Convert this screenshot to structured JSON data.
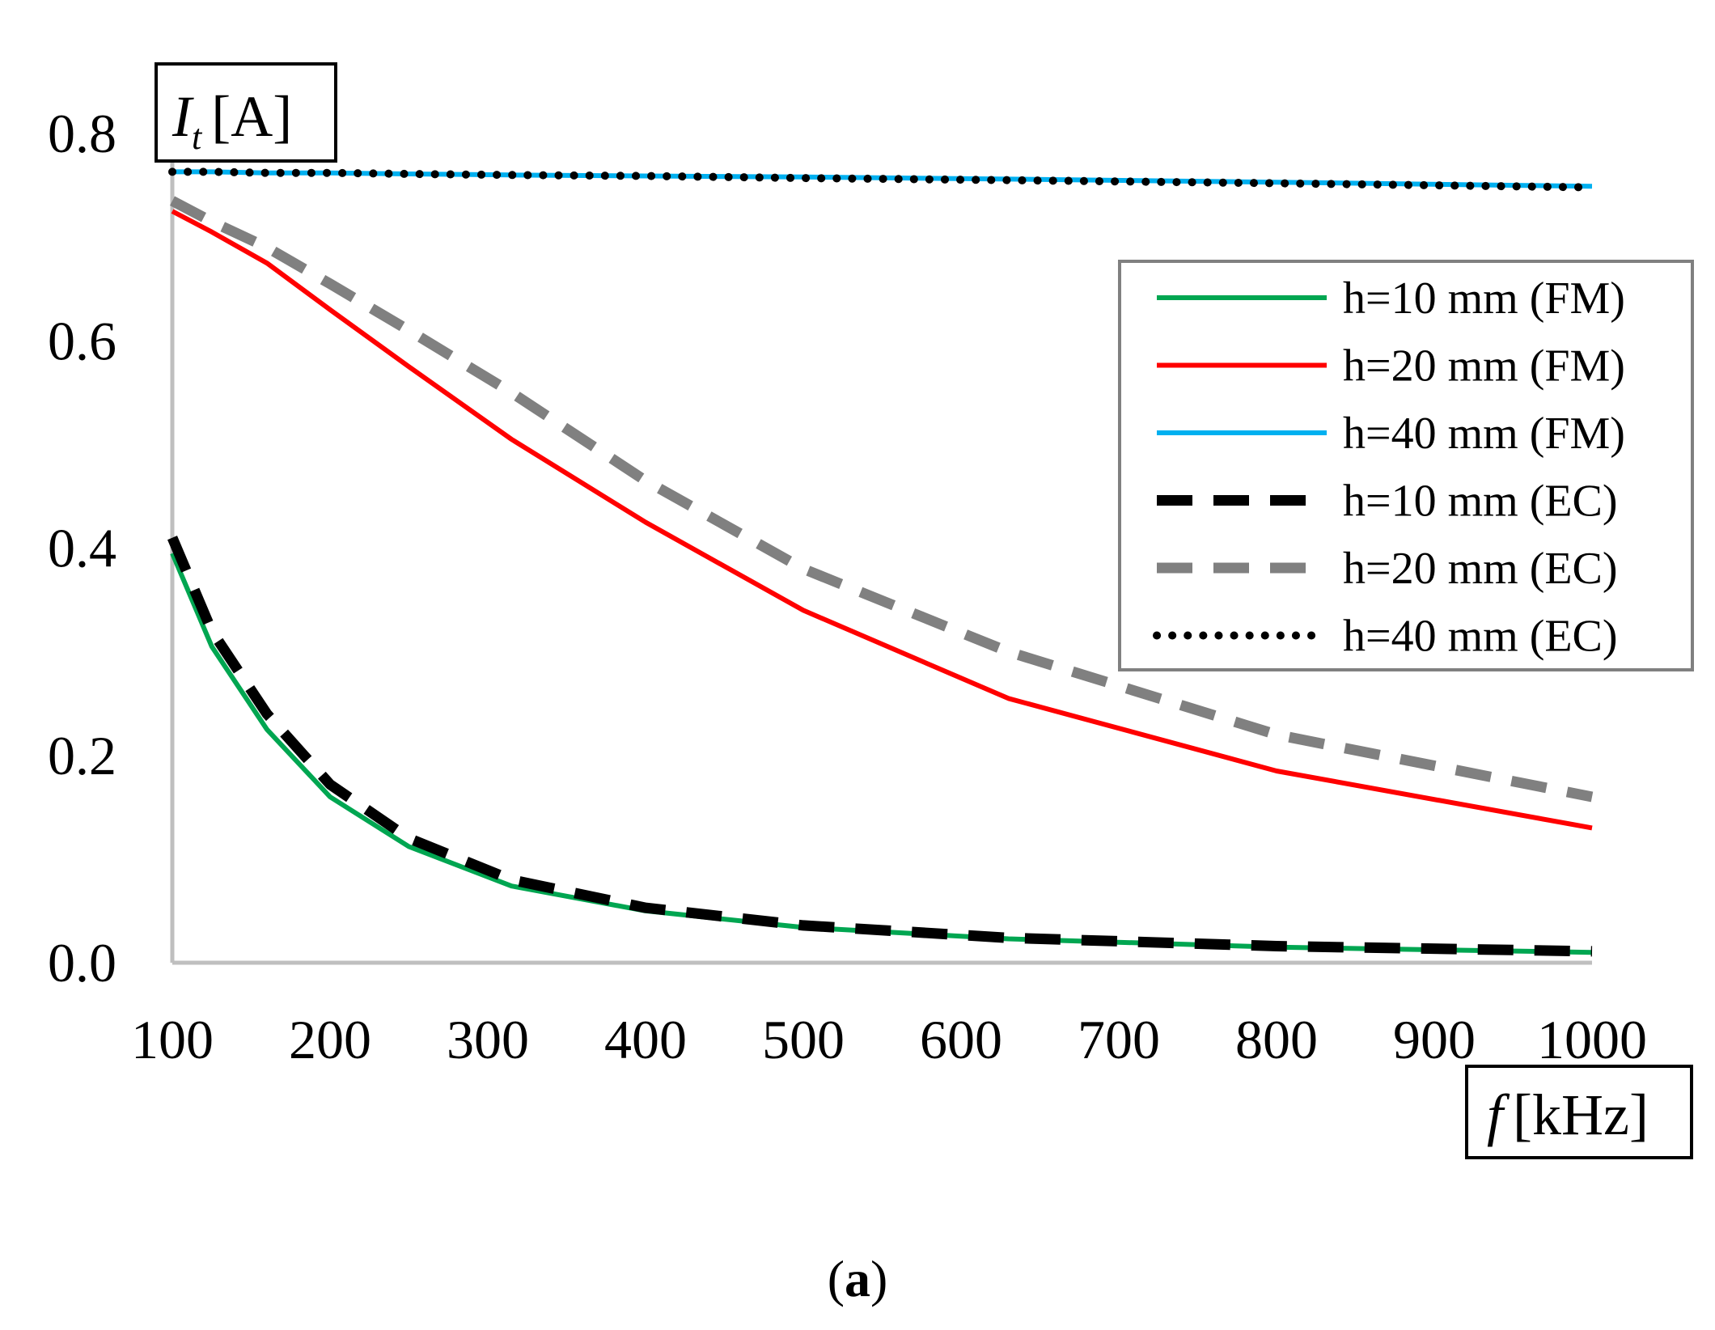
{
  "chart_data": {
    "type": "line",
    "title": "",
    "xlabel": {
      "symbol": "f",
      "unit": "[kHz]"
    },
    "ylabel": {
      "symbol": "I",
      "subscript": "t",
      "unit": "[A]"
    },
    "xlim": [
      100,
      1000
    ],
    "ylim": [
      0,
      0.8
    ],
    "xticks": [
      100,
      200,
      300,
      400,
      500,
      600,
      700,
      800,
      900,
      1000
    ],
    "xtick_labels": [
      "100",
      "200",
      "300",
      "400",
      "500",
      "600",
      "700",
      "800",
      "900",
      "1000"
    ],
    "yticks": [
      0,
      0.2,
      0.4,
      0.6,
      0.8
    ],
    "ytick_labels": [
      "0.0",
      "0.2",
      "0.4",
      "0.6",
      "0.8"
    ],
    "grid": false,
    "legend_position": "right",
    "caption": {
      "letter": "a"
    },
    "x": [
      100,
      125,
      160,
      200,
      250,
      315,
      400,
      500,
      630,
      800,
      1000
    ],
    "series": [
      {
        "name": "h=10 mm (FM)",
        "color": "#00a651",
        "style": "solid",
        "values": [
          0.395,
          0.305,
          0.225,
          0.16,
          0.112,
          0.074,
          0.05,
          0.034,
          0.023,
          0.015,
          0.01
        ]
      },
      {
        "name": "h=20 mm (FM)",
        "color": "#ff0000",
        "style": "solid",
        "values": [
          0.725,
          0.705,
          0.675,
          0.63,
          0.575,
          0.505,
          0.425,
          0.34,
          0.255,
          0.185,
          0.13
        ]
      },
      {
        "name": "h=40 mm (FM)",
        "color": "#00b0f0",
        "style": "solid",
        "values": [
          0.763,
          0.763,
          0.762,
          0.762,
          0.761,
          0.76,
          0.759,
          0.758,
          0.756,
          0.753,
          0.749
        ]
      },
      {
        "name": "h=10 mm (EC)",
        "color": "#000000",
        "style": "dashed",
        "values": [
          0.41,
          0.32,
          0.24,
          0.172,
          0.12,
          0.08,
          0.053,
          0.036,
          0.024,
          0.016,
          0.011
        ]
      },
      {
        "name": "h=20 mm (EC)",
        "color": "#808080",
        "style": "dashed",
        "values": [
          0.735,
          0.715,
          0.69,
          0.655,
          0.61,
          0.55,
          0.465,
          0.38,
          0.3,
          0.22,
          0.16
        ]
      },
      {
        "name": "h=40 mm (EC)",
        "color": "#000000",
        "style": "dotted",
        "values": [
          0.763,
          0.763,
          0.762,
          0.762,
          0.761,
          0.76,
          0.759,
          0.757,
          0.755,
          0.752,
          0.748
        ]
      }
    ]
  }
}
